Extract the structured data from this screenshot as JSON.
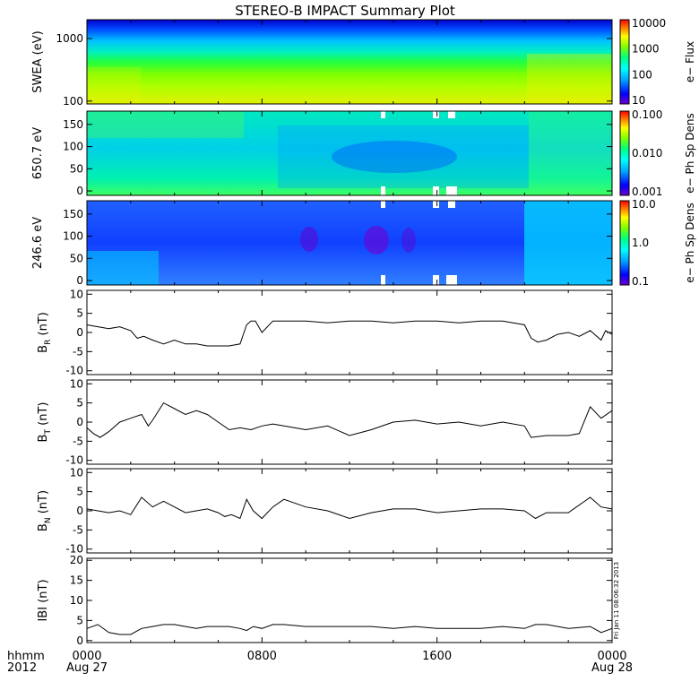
{
  "title": "STEREO-B IMPACT Summary Plot",
  "stamp": "Fri Jan 11 08:06:32 2013",
  "footer": {
    "left_top": "hhmm",
    "left_bottom": "2012",
    "x_ticks": [
      {
        "t": 0,
        "label": "0000",
        "date": "Aug 27"
      },
      {
        "t": 8,
        "label": "0800",
        "date": ""
      },
      {
        "t": 16,
        "label": "1600",
        "date": ""
      },
      {
        "t": 24,
        "label": "0000",
        "date": "Aug 28"
      }
    ]
  },
  "colors": {
    "spectrogram_scale": [
      "#7000d0",
      "#0000ff",
      "#00a0ff",
      "#00ffff",
      "#00ff80",
      "#80ff00",
      "#ffff00",
      "#ff8000",
      "#ff0000"
    ]
  },
  "chart_data": [
    {
      "type": "heatmap",
      "panel": "swea",
      "ylabel": "SWEA (eV)",
      "y_ticks": [
        {
          "v": 100,
          "label": "100"
        },
        {
          "v": 1000,
          "label": "1000"
        }
      ],
      "ylim": [
        90,
        2000
      ],
      "y_log": true,
      "colorbar": {
        "label": "e− Flux",
        "ticks": [
          "10000",
          "1000",
          "100",
          "10"
        ]
      },
      "xlim": [
        0,
        24
      ]
    },
    {
      "type": "heatmap",
      "panel": "pad_650",
      "ylabel": "650.7 eV",
      "y_ticks": [
        {
          "v": 0,
          "label": "0"
        },
        {
          "v": 50,
          "label": "50"
        },
        {
          "v": 100,
          "label": "100"
        },
        {
          "v": 150,
          "label": "150"
        }
      ],
      "ylim": [
        -10,
        180
      ],
      "colorbar": {
        "label": "e− Ph Sp Dens",
        "ticks": [
          "0.100",
          "0.010",
          "0.001"
        ]
      },
      "xlim": [
        0,
        24
      ]
    },
    {
      "type": "heatmap",
      "panel": "pad_246",
      "ylabel": "246.6 eV",
      "y_ticks": [
        {
          "v": 0,
          "label": "0"
        },
        {
          "v": 50,
          "label": "50"
        },
        {
          "v": 100,
          "label": "100"
        },
        {
          "v": 150,
          "label": "150"
        }
      ],
      "ylim": [
        -10,
        180
      ],
      "colorbar": {
        "label": "e− Ph Sp Dens",
        "ticks": [
          "10.0",
          "1.0",
          "0.1"
        ]
      },
      "xlim": [
        0,
        24
      ]
    },
    {
      "type": "line",
      "panel": "br",
      "ylabel": "B",
      "ylabel_sub": "R",
      "ylabel_unit": "(nT)",
      "ylim": [
        -11,
        11
      ],
      "y_ticks": [
        -10,
        -5,
        0,
        5,
        10
      ],
      "xlim": [
        0,
        24
      ],
      "x": [
        0,
        0.5,
        1,
        1.5,
        2,
        2.3,
        2.6,
        3,
        3.5,
        4,
        4.5,
        5,
        5.5,
        6,
        6.5,
        7,
        7.3,
        7.5,
        7.7,
        8,
        8.5,
        9,
        10,
        11,
        12,
        13,
        14,
        15,
        16,
        17,
        18,
        19,
        20,
        20.3,
        20.6,
        21,
        21.5,
        22,
        22.5,
        23,
        23.5,
        23.7,
        24
      ],
      "y": [
        2,
        1.5,
        1,
        1.5,
        0.5,
        -1.5,
        -1,
        -2,
        -3,
        -2,
        -3,
        -3,
        -3.5,
        -3.5,
        -3.5,
        -3,
        2,
        3,
        3,
        0,
        3,
        3,
        3,
        2.5,
        3,
        3,
        2.5,
        3,
        3,
        2.5,
        3,
        3,
        2,
        -1.5,
        -2.5,
        -2,
        -0.5,
        0,
        -1,
        0.5,
        -2,
        0.5,
        -0.5
      ]
    },
    {
      "type": "line",
      "panel": "bt",
      "ylabel": "B",
      "ylabel_sub": "T",
      "ylabel_unit": "(nT)",
      "ylim": [
        -11,
        11
      ],
      "y_ticks": [
        -10,
        -5,
        0,
        5,
        10
      ],
      "xlim": [
        0,
        24
      ],
      "x": [
        0,
        0.3,
        0.6,
        1,
        1.5,
        2,
        2.5,
        2.8,
        3,
        3.5,
        4,
        4.5,
        5,
        5.5,
        6,
        6.5,
        7,
        7.5,
        8,
        8.5,
        9,
        10,
        11,
        12,
        13,
        14,
        15,
        16,
        17,
        18,
        19,
        20,
        20.3,
        21,
        22,
        22.5,
        23,
        23.5,
        24
      ],
      "y": [
        -1.5,
        -3,
        -4,
        -2.5,
        0,
        1,
        2,
        -1,
        0.5,
        5,
        3.5,
        2,
        3,
        2,
        0,
        -2,
        -1.5,
        -2,
        -1,
        -0.5,
        -1,
        -2,
        -1,
        -3.5,
        -2,
        0,
        0.5,
        -0.5,
        0,
        -1,
        0,
        -1,
        -4,
        -3.5,
        -3.5,
        -3,
        4,
        1,
        3
      ]
    },
    {
      "type": "line",
      "panel": "bn",
      "ylabel": "B",
      "ylabel_sub": "N",
      "ylabel_unit": "(nT)",
      "ylim": [
        -11,
        11
      ],
      "y_ticks": [
        -10,
        -5,
        0,
        5,
        10
      ],
      "xlim": [
        0,
        24
      ],
      "x": [
        0,
        0.5,
        1,
        1.5,
        2,
        2.5,
        3,
        3.5,
        4,
        4.5,
        5,
        5.5,
        6,
        6.3,
        6.6,
        7,
        7.3,
        7.6,
        8,
        8.5,
        9,
        10,
        11,
        12,
        13,
        14,
        15,
        16,
        17,
        18,
        19,
        20,
        20.5,
        21,
        22,
        23,
        23.5,
        24
      ],
      "y": [
        0.5,
        0,
        -0.5,
        0,
        -1,
        3.5,
        1,
        2.5,
        1,
        -0.5,
        0,
        0.5,
        -0.5,
        -1.5,
        -1,
        -2,
        3,
        0,
        -2,
        1,
        3,
        1,
        0,
        -2,
        -0.5,
        0.5,
        0.5,
        -0.5,
        0,
        0.5,
        0.5,
        0,
        -2,
        -0.5,
        -0.5,
        3.5,
        1,
        0.5
      ]
    },
    {
      "type": "line",
      "panel": "bmag",
      "ylabel": "IBI",
      "ylabel_unit": "(nT)",
      "ylim": [
        -0.5,
        20.5
      ],
      "y_ticks": [
        0,
        5,
        10,
        15,
        20
      ],
      "xlim": [
        0,
        24
      ],
      "x": [
        0,
        0.5,
        1,
        1.5,
        2,
        2.5,
        3,
        3.5,
        4,
        4.5,
        5,
        5.5,
        6,
        6.5,
        7,
        7.3,
        7.6,
        8,
        8.5,
        9,
        10,
        11,
        12,
        13,
        14,
        15,
        16,
        17,
        18,
        19,
        20,
        20.5,
        21,
        22,
        23,
        23.5,
        24
      ],
      "y": [
        3,
        4,
        2,
        1.5,
        1.5,
        3,
        3.5,
        4,
        4,
        3.5,
        3,
        3.5,
        3.5,
        3.5,
        3,
        2.5,
        3.5,
        3,
        4,
        4,
        3.5,
        3.5,
        3.5,
        3.5,
        3,
        3.5,
        3,
        3,
        3,
        3.5,
        3,
        4,
        4,
        3,
        3.5,
        2,
        3
      ]
    }
  ]
}
